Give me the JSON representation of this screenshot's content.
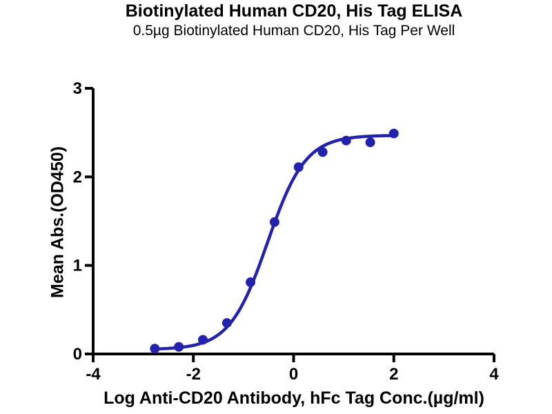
{
  "title": "Biotinylated Human CD20, His Tag ELISA",
  "subtitle": "0.5µg Biotinylated Human CD20, His Tag Per Well",
  "chart_data": {
    "type": "scatter",
    "title": "Biotinylated Human CD20, His Tag ELISA",
    "subtitle": "0.5µg Biotinylated Human CD20, His Tag Per Well",
    "xlabel": "Log Anti-CD20 Antibody, hFc Tag Conc.(µg/ml)",
    "ylabel": "Mean Abs.(OD450)",
    "xlim": [
      -4,
      4
    ],
    "ylim": [
      0,
      3
    ],
    "x_ticks": [
      "-4",
      "-2",
      "0",
      "2",
      "4"
    ],
    "x_tick_values": [
      -4,
      -2,
      0,
      2,
      4
    ],
    "y_ticks": [
      "0",
      "1",
      "2",
      "3"
    ],
    "y_tick_values": [
      0,
      1,
      2,
      3
    ],
    "grid": false,
    "legend": null,
    "series": [
      {
        "name": "Anti-CD20 Antibody, hFc Tag",
        "marker": "circle",
        "color": "#2222ac",
        "points": [
          {
            "x": -2.77,
            "y": 0.06
          },
          {
            "x": -2.29,
            "y": 0.08
          },
          {
            "x": -1.81,
            "y": 0.16
          },
          {
            "x": -1.33,
            "y": 0.35
          },
          {
            "x": -0.86,
            "y": 0.81
          },
          {
            "x": -0.38,
            "y": 1.49
          },
          {
            "x": 0.1,
            "y": 2.11
          },
          {
            "x": 0.58,
            "y": 2.28
          },
          {
            "x": 1.05,
            "y": 2.41
          },
          {
            "x": 1.53,
            "y": 2.39
          },
          {
            "x": 2.0,
            "y": 2.49
          }
        ],
        "fit": {
          "model": "4PL",
          "bottom": 0.05,
          "top": 2.47,
          "logEC50": -0.52,
          "hillslope": 1.15
        }
      }
    ]
  },
  "colors": {
    "curve": "#2222ac",
    "axis": "#000000",
    "text": "#000000",
    "background": "#ffffff"
  }
}
